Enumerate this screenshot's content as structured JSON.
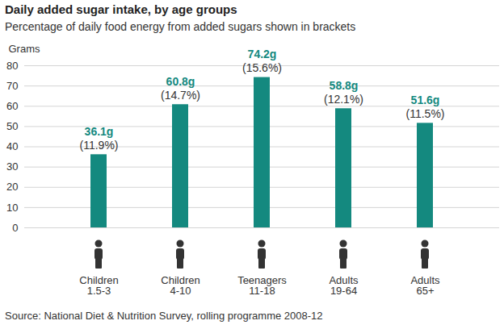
{
  "chart_data": {
    "type": "bar",
    "title": "Daily added sugar intake, by age groups",
    "subtitle": "Percentage of daily food energy from added sugars shown in brackets",
    "y_label": "Grams",
    "categories": [
      "Children\n1.5-3",
      "Children\n4-10",
      "Teenagers\n11-18",
      "Adults\n19-64",
      "Adults\n65+"
    ],
    "values": [
      36.1,
      60.8,
      74.2,
      58.8,
      51.6
    ],
    "value_labels": [
      "36.1g",
      "60.8g",
      "74.2g",
      "58.8g",
      "51.6g"
    ],
    "energy_share": {
      "values": [
        11.9,
        14.7,
        15.6,
        12.1,
        11.5
      ],
      "value_labels": [
        "(11.9%)",
        "(14.7%)",
        "(15.6%)",
        "(12.1%)",
        "(11.5%)"
      ]
    },
    "color": "#14897f",
    "ylim": [
      0,
      80
    ],
    "yticks": [
      0,
      10,
      20,
      30,
      40,
      50,
      60,
      70,
      80
    ],
    "grid": true,
    "data_labels": true,
    "caption": "Source: National Diet & Nutrition Survey, rolling programme 2008-12"
  }
}
